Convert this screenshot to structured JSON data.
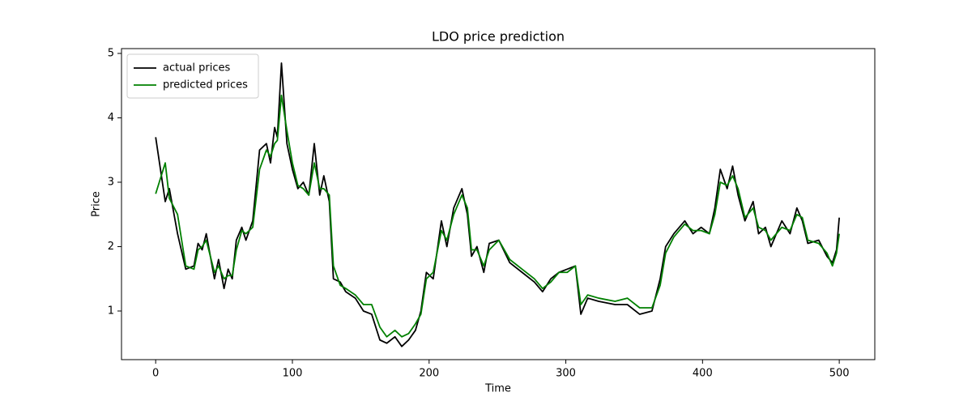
{
  "chart_data": {
    "type": "line",
    "title": "LDO price prediction",
    "x_label": "Time",
    "y_label": "Price",
    "x": [
      0,
      7,
      10,
      16,
      22,
      28,
      31,
      34,
      37,
      43,
      46,
      50,
      53,
      56,
      59,
      63,
      66,
      71,
      76,
      81,
      84,
      87,
      89,
      92,
      96,
      100,
      104,
      108,
      112,
      116,
      120,
      123,
      127,
      130,
      135,
      139,
      146,
      152,
      158,
      164,
      169,
      175,
      180,
      185,
      190,
      194,
      198,
      203,
      209,
      213,
      218,
      224,
      228,
      231,
      235,
      240,
      244,
      251,
      259,
      268,
      277,
      283,
      289,
      295,
      301,
      307,
      311,
      316,
      324,
      336,
      345,
      354,
      363,
      369,
      373,
      379,
      387,
      393,
      399,
      405,
      409,
      413,
      418,
      422,
      426,
      431,
      437,
      441,
      446,
      450,
      458,
      464,
      469,
      473,
      477,
      485,
      491,
      495,
      498,
      500
    ],
    "series": [
      {
        "name": "actual prices",
        "color": "#000000",
        "values": [
          3.7,
          2.7,
          2.9,
          2.2,
          1.65,
          1.7,
          2.05,
          1.95,
          2.2,
          1.5,
          1.8,
          1.35,
          1.65,
          1.5,
          2.1,
          2.3,
          2.1,
          2.4,
          3.5,
          3.6,
          3.3,
          3.85,
          3.7,
          4.85,
          3.6,
          3.2,
          2.9,
          3.0,
          2.8,
          3.6,
          2.8,
          3.1,
          2.7,
          1.5,
          1.45,
          1.3,
          1.2,
          1.0,
          0.95,
          0.55,
          0.5,
          0.6,
          0.45,
          0.55,
          0.7,
          1.0,
          1.6,
          1.5,
          2.4,
          2.0,
          2.6,
          2.9,
          2.5,
          1.85,
          2.0,
          1.6,
          2.05,
          2.1,
          1.75,
          1.6,
          1.45,
          1.3,
          1.5,
          1.6,
          1.65,
          1.7,
          0.95,
          1.2,
          1.15,
          1.1,
          1.1,
          0.95,
          1.0,
          1.5,
          2.0,
          2.2,
          2.4,
          2.2,
          2.3,
          2.2,
          2.6,
          3.2,
          2.9,
          3.25,
          2.8,
          2.4,
          2.7,
          2.2,
          2.3,
          2.0,
          2.4,
          2.2,
          2.6,
          2.4,
          2.05,
          2.1,
          1.85,
          1.75,
          1.95,
          2.45
        ]
      },
      {
        "name": "predicted prices",
        "color": "#008000",
        "values": [
          2.82,
          3.3,
          2.75,
          2.5,
          1.7,
          1.65,
          1.95,
          2.0,
          2.1,
          1.6,
          1.7,
          1.5,
          1.55,
          1.55,
          1.95,
          2.25,
          2.2,
          2.3,
          3.2,
          3.5,
          3.4,
          3.6,
          3.65,
          4.35,
          3.8,
          3.3,
          2.95,
          2.9,
          2.8,
          3.3,
          2.9,
          2.9,
          2.8,
          1.7,
          1.4,
          1.35,
          1.25,
          1.1,
          1.1,
          0.75,
          0.6,
          0.7,
          0.6,
          0.65,
          0.8,
          0.95,
          1.5,
          1.6,
          2.25,
          2.1,
          2.5,
          2.8,
          2.6,
          1.95,
          1.95,
          1.7,
          1.95,
          2.1,
          1.8,
          1.65,
          1.5,
          1.35,
          1.45,
          1.6,
          1.6,
          1.7,
          1.1,
          1.25,
          1.2,
          1.15,
          1.2,
          1.05,
          1.05,
          1.4,
          1.9,
          2.15,
          2.35,
          2.25,
          2.25,
          2.2,
          2.5,
          3.0,
          2.95,
          3.1,
          2.9,
          2.45,
          2.6,
          2.3,
          2.25,
          2.1,
          2.3,
          2.25,
          2.5,
          2.45,
          2.1,
          2.05,
          1.9,
          1.7,
          1.9,
          2.2
        ]
      }
    ],
    "xlim": [
      -25,
      526
    ],
    "ylim": [
      0.245,
      5.075
    ],
    "xticks": [
      0,
      100,
      200,
      300,
      400,
      500
    ],
    "yticks": [
      1,
      2,
      3,
      4,
      5
    ],
    "grid": false,
    "legend": "upper left"
  }
}
